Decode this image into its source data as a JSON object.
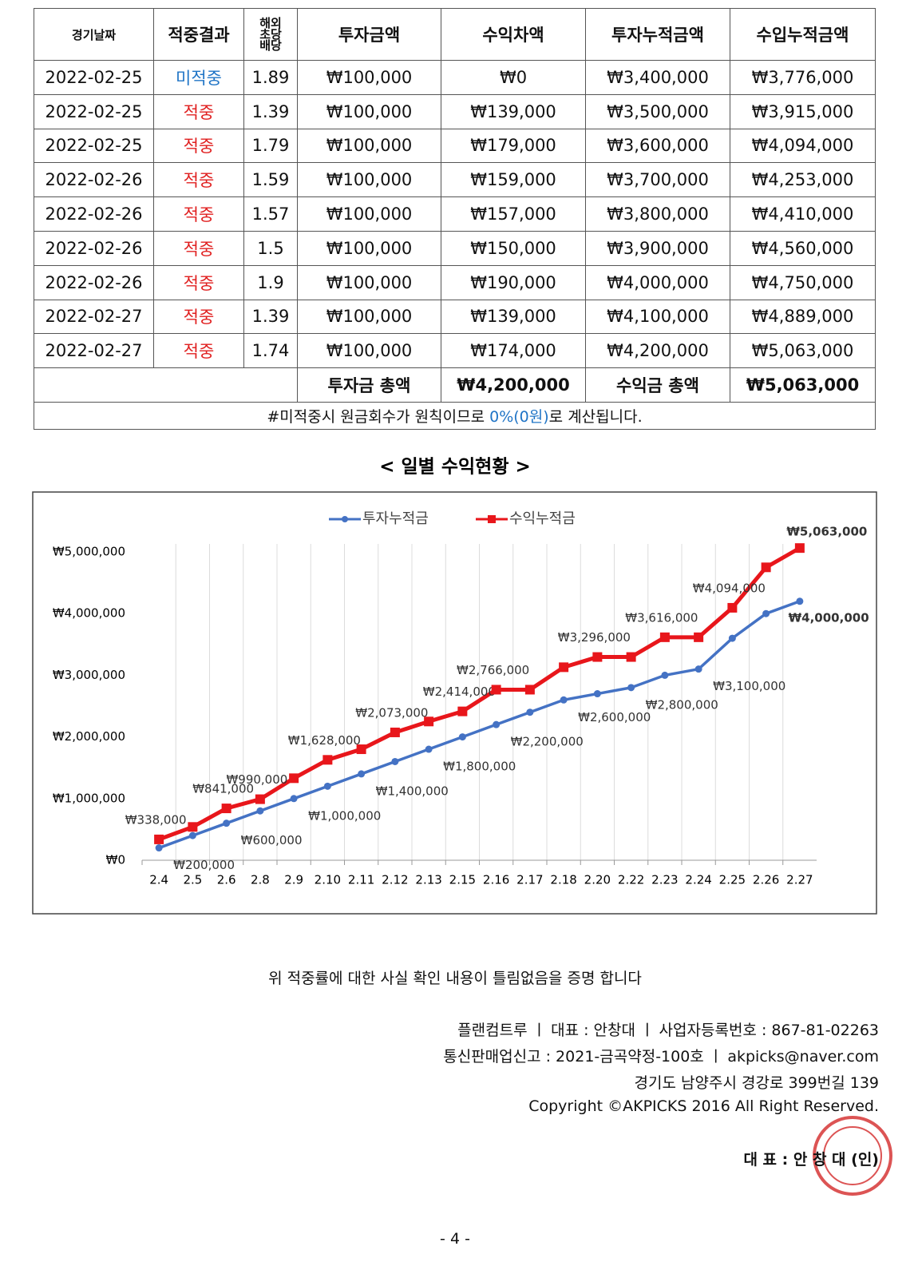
{
  "table": {
    "headers": [
      "경기날짜",
      "적중결과",
      "해외\n초당\n배당",
      "투자금액",
      "수익차액",
      "투자누적금액",
      "수입누적금액"
    ],
    "rows": [
      [
        "2022-02-25",
        "미적중",
        "1.89",
        "₩100,000",
        "₩0",
        "₩3,400,000",
        "₩3,776,000"
      ],
      [
        "2022-02-25",
        "적중",
        "1.39",
        "₩100,000",
        "₩139,000",
        "₩3,500,000",
        "₩3,915,000"
      ],
      [
        "2022-02-25",
        "적중",
        "1.79",
        "₩100,000",
        "₩179,000",
        "₩3,600,000",
        "₩4,094,000"
      ],
      [
        "2022-02-26",
        "적중",
        "1.59",
        "₩100,000",
        "₩159,000",
        "₩3,700,000",
        "₩4,253,000"
      ],
      [
        "2022-02-26",
        "적중",
        "1.57",
        "₩100,000",
        "₩157,000",
        "₩3,800,000",
        "₩4,410,000"
      ],
      [
        "2022-02-26",
        "적중",
        "1.5",
        "₩100,000",
        "₩150,000",
        "₩3,900,000",
        "₩4,560,000"
      ],
      [
        "2022-02-26",
        "적중",
        "1.9",
        "₩100,000",
        "₩190,000",
        "₩4,000,000",
        "₩4,750,000"
      ],
      [
        "2022-02-27",
        "적중",
        "1.39",
        "₩100,000",
        "₩139,000",
        "₩4,100,000",
        "₩4,889,000"
      ],
      [
        "2022-02-27",
        "적중",
        "1.74",
        "₩100,000",
        "₩174,000",
        "₩4,200,000",
        "₩5,063,000"
      ]
    ],
    "totals": [
      "투자금 총액",
      "₩4,200,000",
      "수익금 총액",
      "₩5,063,000"
    ],
    "note": [
      "#미적중시 원금회수가 원칙이므로 ",
      "0%(0원)",
      "로 계산됩니다."
    ]
  },
  "chart_data": {
    "type": "line",
    "title": "< 일별 수익현황 >",
    "categories": [
      "2.4",
      "2.5",
      "2.6",
      "2.8",
      "2.9",
      "2.10",
      "2.11",
      "2.12",
      "2.13",
      "2.15",
      "2.16",
      "2.17",
      "2.18",
      "2.20",
      "2.22",
      "2.23",
      "2.24",
      "2.25",
      "2.26",
      "2.27"
    ],
    "series": [
      {
        "name": "투자누적금",
        "color": "#4472c4",
        "values": [
          200000,
          400000,
          600000,
          800000,
          1000000,
          1200000,
          1400000,
          1600000,
          1800000,
          2000000,
          2200000,
          2400000,
          2600000,
          2700000,
          2800000,
          3000000,
          3100000,
          3600000,
          4000000,
          4200000
        ],
        "value_labels": [
          "₩200,000",
          null,
          "₩600,000",
          null,
          "₩1,000,000",
          null,
          "₩1,400,000",
          null,
          "₩1,800,000",
          null,
          "₩2,200,000",
          null,
          "₩2,600,000",
          null,
          "₩2,800,000",
          null,
          "₩3,100,000",
          null,
          "₩4,000,000",
          null
        ]
      },
      {
        "name": "수익누적금",
        "color": "#e8161b",
        "values": [
          338000,
          540000,
          841000,
          990000,
          1330000,
          1628000,
          1800000,
          2073000,
          2250000,
          2414000,
          2766000,
          2766000,
          3130000,
          3296000,
          3296000,
          3616000,
          3616000,
          4094000,
          4750000,
          5063000
        ],
        "value_labels": [
          "₩338,000",
          null,
          "₩841,000",
          "₩990,000",
          null,
          "₩1,628,000",
          null,
          "₩2,073,000",
          null,
          "₩2,414,000",
          "₩2,766,000",
          null,
          null,
          "₩3,296,000",
          null,
          "₩3,616,000",
          null,
          "₩4,094,000",
          null,
          "₩5,063,000"
        ]
      }
    ],
    "ylim": [
      0,
      5000000
    ],
    "yticks": [
      {
        "value": 0,
        "label": "₩0"
      },
      {
        "value": 1000000,
        "label": "₩1,000,000"
      },
      {
        "value": 2000000,
        "label": "₩2,000,000"
      },
      {
        "value": 3000000,
        "label": "₩3,000,000"
      },
      {
        "value": 4000000,
        "label": "₩4,000,000"
      },
      {
        "value": 5000000,
        "label": "₩5,000,000"
      }
    ],
    "grid": true,
    "legend": "top"
  },
  "footer": {
    "statement": "위 적중률에 대한 사실 확인 내용이 틀림없음을 증명 합니다",
    "lines": [
      "플랜컴트루 ㅣ 대표 : 안창대 ㅣ 사업자등록번호 : 867-81-02263",
      "통신판매업신고 : 2021-금곡약정-100호 ㅣ akpicks@naver.com",
      "경기도 남양주시 경강로 399번길 139",
      "Copyright ©AKPICKS 2016 All Right Reserved."
    ],
    "signature": "대 표 : 안 창 대 (인)",
    "page_number": "- 4 -"
  }
}
